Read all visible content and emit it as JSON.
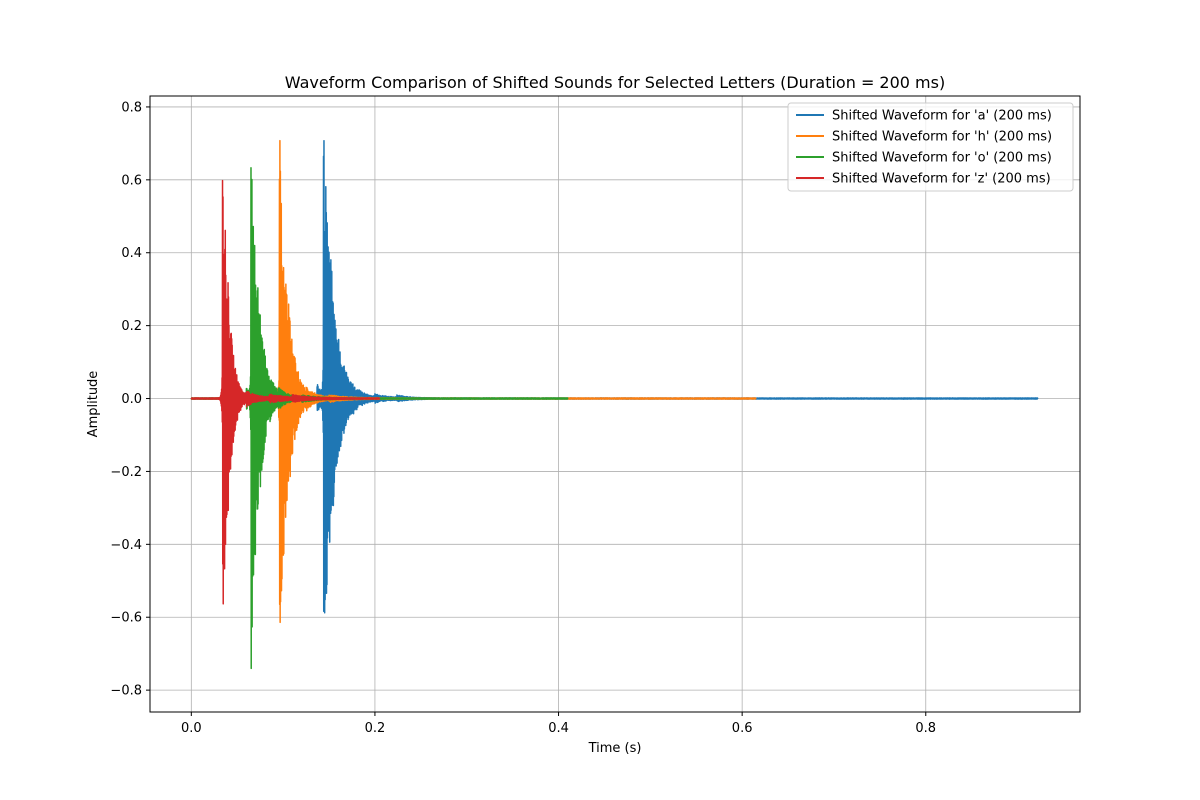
{
  "chart_data": {
    "type": "line",
    "title": "Waveform Comparison of Shifted Sounds for Selected Letters (Duration = 200 ms)",
    "xlabel": "Time (s)",
    "ylabel": "Amplitude",
    "xlim": [
      -0.045,
      0.968
    ],
    "ylim": [
      -0.86,
      0.83
    ],
    "xticks": [
      0.0,
      0.2,
      0.4,
      0.6,
      0.8
    ],
    "xtick_labels": [
      "0.0",
      "0.2",
      "0.4",
      "0.6",
      "0.8"
    ],
    "yticks": [
      -0.8,
      -0.6,
      -0.4,
      -0.2,
      0.0,
      0.2,
      0.4,
      0.6,
      0.8
    ],
    "ytick_labels": [
      "−0.8",
      "−0.6",
      "−0.4",
      "−0.2",
      "0.0",
      "0.2",
      "0.4",
      "0.6",
      "0.8"
    ],
    "grid": true,
    "legend_position": "top-right",
    "series": [
      {
        "name": "Shifted Waveform for 'a' (200 ms)",
        "color": "#1f77b4",
        "x_end": 0.922,
        "onset": 0.144,
        "bursts": [
          {
            "t": 0.137,
            "amp": 0.04,
            "decay": 0.006
          },
          {
            "t": 0.144,
            "amp": 0.78,
            "decay": 0.01
          },
          {
            "t": 0.152,
            "amp": 0.04,
            "decay": 0.01
          },
          {
            "t": 0.175,
            "amp": 0.008,
            "decay": 0.02
          },
          {
            "t": 0.2,
            "amp": 0.006,
            "decay": 0.02
          },
          {
            "t": 0.224,
            "amp": 0.006,
            "decay": 0.012
          }
        ]
      },
      {
        "name": "Shifted Waveform for 'h' (200 ms)",
        "color": "#ff7f0e",
        "x_end": 0.615,
        "onset": 0.096,
        "bursts": [
          {
            "t": 0.091,
            "amp": 0.03,
            "decay": 0.005
          },
          {
            "t": 0.096,
            "amp": 0.77,
            "decay": 0.008
          },
          {
            "t": 0.106,
            "amp": 0.05,
            "decay": 0.008
          },
          {
            "t": 0.125,
            "amp": 0.01,
            "decay": 0.02
          },
          {
            "t": 0.15,
            "amp": 0.006,
            "decay": 0.02
          }
        ]
      },
      {
        "name": "Shifted Waveform for 'o' (200 ms)",
        "color": "#2ca02c",
        "x_end": 0.41,
        "onset": 0.065,
        "bursts": [
          {
            "t": 0.06,
            "amp": 0.03,
            "decay": 0.005
          },
          {
            "t": 0.065,
            "amp": 0.77,
            "decay": 0.008
          },
          {
            "t": 0.075,
            "amp": 0.03,
            "decay": 0.008
          },
          {
            "t": 0.095,
            "amp": 0.01,
            "decay": 0.02
          },
          {
            "t": 0.12,
            "amp": 0.006,
            "decay": 0.02
          }
        ]
      },
      {
        "name": "Shifted Waveform for 'z' (200 ms)",
        "color": "#d62728",
        "x_end": 0.205,
        "onset": 0.034,
        "bursts": [
          {
            "t": 0.034,
            "amp": 0.76,
            "decay": 0.006
          },
          {
            "t": 0.04,
            "amp": 0.04,
            "decay": 0.006
          },
          {
            "t": 0.06,
            "amp": 0.012,
            "decay": 0.02
          },
          {
            "t": 0.085,
            "amp": 0.008,
            "decay": 0.02
          },
          {
            "t": 0.11,
            "amp": 0.006,
            "decay": 0.02
          }
        ]
      }
    ]
  }
}
